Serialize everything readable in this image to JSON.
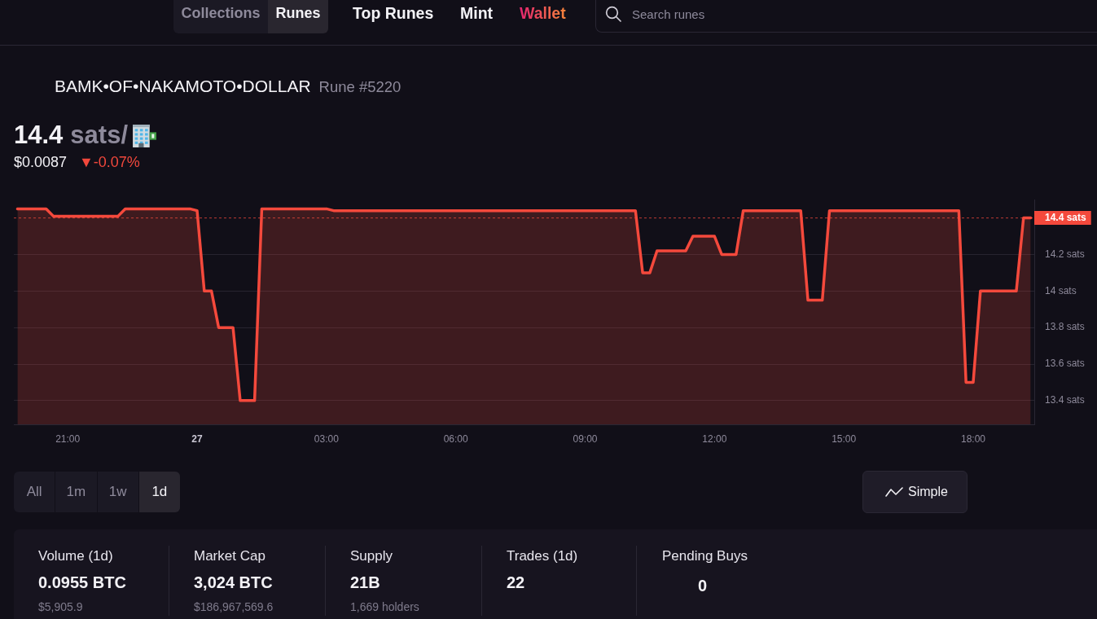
{
  "chart_data": {
    "type": "area",
    "title": "BAMK•OF•NAKAMOTO•DOLLAR",
    "subtitle": "Rune #5220",
    "categories": [
      null,
      null,
      null,
      null,
      null,
      null,
      null,
      "21:00",
      null,
      null,
      null,
      null,
      null,
      null,
      null,
      null,
      null,
      null,
      null,
      null,
      null,
      null,
      null,
      null,
      null,
      "27",
      null,
      null,
      null,
      null,
      null,
      null,
      null,
      null,
      null,
      null,
      null,
      null,
      null,
      null,
      null,
      null,
      null,
      "03:00",
      null,
      null,
      null,
      null,
      null,
      null,
      null,
      null,
      null,
      null,
      null,
      null,
      null,
      null,
      null,
      null,
      null,
      "06:00",
      null,
      null,
      null,
      null,
      null,
      null,
      null,
      null,
      null,
      null,
      null,
      null,
      null,
      null,
      null,
      null,
      null,
      "09:00",
      null,
      null,
      null,
      null,
      null,
      null,
      null,
      null,
      null,
      null,
      null,
      null,
      null,
      null,
      null,
      null,
      null,
      "12:00",
      null,
      null,
      null,
      null,
      null,
      null,
      null,
      null,
      null,
      null,
      null,
      null,
      null,
      null,
      null,
      null,
      null,
      "15:00",
      null,
      null,
      null,
      null,
      null,
      null,
      null,
      null,
      null,
      null,
      null,
      null,
      null,
      null,
      null,
      null,
      null,
      "18:00",
      null,
      null,
      null,
      null,
      null,
      null,
      null,
      null
    ],
    "series": [
      {
        "color": "#f4493c",
        "values": [
          14.45,
          14.45,
          14.45,
          14.45,
          14.45,
          14.41,
          14.41,
          14.41,
          14.41,
          14.41,
          14.41,
          14.41,
          14.41,
          14.41,
          14.41,
          14.45,
          14.45,
          14.45,
          14.45,
          14.45,
          14.45,
          14.45,
          14.45,
          14.45,
          14.45,
          14.44,
          14.0,
          14.0,
          13.8,
          13.8,
          13.8,
          13.4,
          13.4,
          13.4,
          14.45,
          14.45,
          14.45,
          14.45,
          14.45,
          14.45,
          14.45,
          14.45,
          14.45,
          14.45,
          14.44,
          14.44,
          14.44,
          14.44,
          14.44,
          14.44,
          14.44,
          14.44,
          14.44,
          14.44,
          14.44,
          14.44,
          14.44,
          14.44,
          14.44,
          14.44,
          14.44,
          14.44,
          14.44,
          14.44,
          14.44,
          14.44,
          14.44,
          14.44,
          14.44,
          14.44,
          14.44,
          14.44,
          14.44,
          14.44,
          14.44,
          14.44,
          14.44,
          14.44,
          14.44,
          14.44,
          14.44,
          14.44,
          14.44,
          14.44,
          14.44,
          14.44,
          14.44,
          14.1,
          14.1,
          14.22,
          14.22,
          14.22,
          14.22,
          14.22,
          14.3,
          14.3,
          14.3,
          14.3,
          14.2,
          14.2,
          14.2,
          14.44,
          14.44,
          14.44,
          14.44,
          14.44,
          14.44,
          14.44,
          14.44,
          14.44,
          13.95,
          13.95,
          13.95,
          14.44,
          14.44,
          14.44,
          14.44,
          14.44,
          14.44,
          14.44,
          14.44,
          14.44,
          14.44,
          14.44,
          14.44,
          14.44,
          14.44,
          14.44,
          14.44,
          14.44,
          14.44,
          14.44,
          13.5,
          13.5,
          14.0,
          14.0,
          14.0,
          14.0,
          14.0,
          14.0,
          14.4,
          14.4
        ]
      }
    ],
    "ylim": [
      13.27,
      14.5
    ],
    "yticks": [
      {
        "value": 13.4,
        "label": "13.4 sats"
      },
      {
        "value": 13.6,
        "label": "13.6 sats"
      },
      {
        "value": 13.8,
        "label": "13.8 sats"
      },
      {
        "value": 14,
        "label": "14 sats"
      },
      {
        "value": 14.2,
        "label": "14.2 sats"
      }
    ],
    "ref_lines": [
      {
        "axis": "y",
        "value": 14.4,
        "label": "14.4 sats",
        "color": "#f4493c",
        "line_style": "dashed"
      }
    ],
    "grid": "y",
    "marker": "none",
    "annotations": [
      "Collections",
      "Runes",
      "Top Runes",
      "Mint",
      "Wallet",
      "Search runes",
      "14.4",
      "sats/",
      "$0.0087",
      "▼-0.07%",
      "All",
      "1m",
      "1w",
      "1d",
      "Simple",
      "Volume (1d)",
      "0.0955 BTC",
      "$5,905.9",
      "Market Cap",
      "3,024 BTC",
      "$186,967,569.6",
      "Supply",
      "21B",
      "1,669 holders",
      "Trades (1d)",
      "22",
      "Pending Buys",
      "0"
    ]
  }
}
